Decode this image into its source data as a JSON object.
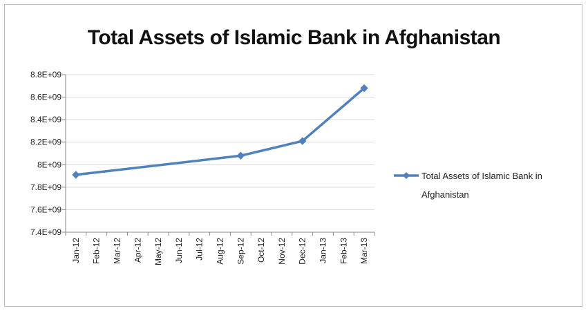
{
  "chart_data": {
    "type": "line",
    "title": "Total Assets of Islamic Bank in Afghanistan",
    "xlabel": "",
    "ylabel": "",
    "x": [
      "Jan-12",
      "Feb-12",
      "Mar-12",
      "Apr-12",
      "May-12",
      "Jun-12",
      "Jul-12",
      "Aug-12",
      "Sep-12",
      "Oct-12",
      "Nov-12",
      "Dec-12",
      "Jan-13",
      "Feb-13",
      "Mar-13"
    ],
    "ylim": [
      7400000000,
      8800000000
    ],
    "yticks": [
      "8.8E+09",
      "8.6E+09",
      "8.4E+09",
      "8.2E+09",
      "8E+09",
      "7.8E+09",
      "7.6E+09",
      "7.4E+09"
    ],
    "yticks_values": [
      8800000000,
      8600000000,
      8400000000,
      8200000000,
      8000000000,
      7800000000,
      7600000000,
      7400000000
    ],
    "series": [
      {
        "name": "Total Assets of Islamic Bank in Afghanistan",
        "points": [
          {
            "x": "Jan-12",
            "y": 7910000000
          },
          {
            "x": "Sep-12",
            "y": 8080000000
          },
          {
            "x": "Dec-12",
            "y": 8210000000
          },
          {
            "x": "Mar-13",
            "y": 8680000000
          }
        ],
        "color": "#4f81bd"
      }
    ],
    "legend": {
      "position": "right",
      "lines": [
        "Total Assets of Islamic Bank in",
        "Afghanistan"
      ]
    },
    "grid": true
  }
}
